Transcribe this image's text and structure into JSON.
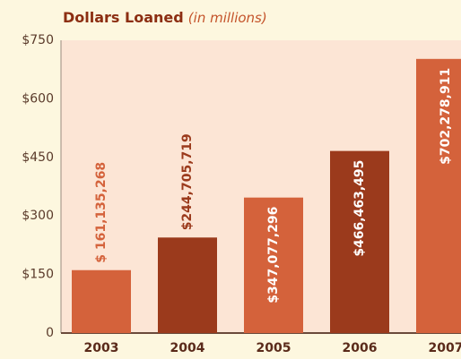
{
  "chart_data": {
    "type": "bar",
    "title": "Dollars Loaned",
    "subtitle": "(in millions)",
    "categories": [
      "2003",
      "2004",
      "2005",
      "2006",
      "2007"
    ],
    "values": [
      161.135268,
      244.705719,
      347.077296,
      466.463495,
      702.278911
    ],
    "value_labels": [
      "$ 161,135,268",
      "$244,705,719",
      "$347,077,296",
      "$466,463,495",
      "$702,278,911"
    ],
    "colors": [
      "#d4623b",
      "#9b3a1c",
      "#d4623b",
      "#9b3a1c",
      "#d4623b"
    ],
    "ylim": [
      0,
      750
    ],
    "yticks": [
      0,
      {
        "value": 150,
        "label": "$150"
      },
      {
        "value": 300,
        "label": "$300"
      },
      {
        "value": 450,
        "label": "$450"
      },
      {
        "value": 600,
        "label": "$600"
      },
      {
        "value": 750,
        "label": "$750"
      }
    ],
    "grid": false
  }
}
